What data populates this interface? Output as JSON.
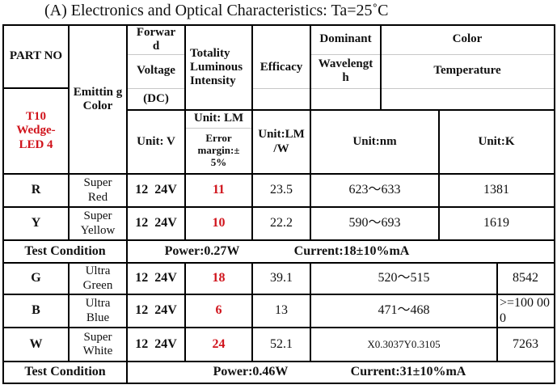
{
  "title": "(A) Electronics and Optical Characteristics: Ta=25˚C",
  "header": {
    "part_no": "PART NO",
    "model": "T10 Wedge-LED 4",
    "emitting_color": "Emittin g Color",
    "forward_1": "Forwar d",
    "forward_2": "Voltage",
    "forward_3": "(DC)",
    "luminous": "Totality Luminous Intensity",
    "efficacy": "Efficacy",
    "dominant_1": "Dominant",
    "dominant_2": "Wavelengt h",
    "color_1": "Color",
    "color_2": "Temperature",
    "unit_v": "Unit: V",
    "unit_lm": "Unit: LM",
    "error_margin": "Error margin:± 5%",
    "unit_lmw": "Unit:LM /W",
    "unit_nm": "Unit:nm",
    "unit_k": "Unit:K"
  },
  "rows": [
    {
      "code": "R",
      "color": "Super Red",
      "voltage": "12  24V",
      "lumens": "11",
      "efficacy": "23.5",
      "wavelength": "623～633",
      "temperature": "1381"
    },
    {
      "code": "Y",
      "color": "Super Yellow",
      "voltage": "12  24V",
      "lumens": "10",
      "efficacy": "22.2",
      "wavelength": "590～693",
      "temperature": "1619"
    },
    {
      "code": "G",
      "color": "Ultra Green",
      "voltage": "12  24V",
      "lumens": "18",
      "efficacy": "39.1",
      "wavelength": "520～515",
      "temperature": "8542"
    },
    {
      "code": "B",
      "color": "Ultra Blue",
      "voltage": "12  24V",
      "lumens": "6",
      "efficacy": "13",
      "wavelength": "471～468",
      "temperature": ">=100 000"
    },
    {
      "code": "W",
      "color": "Super White",
      "voltage": "12  24V",
      "lumens": "24",
      "efficacy": "52.1",
      "wavelength": "X0.3037Y0.3105",
      "temperature": "7263"
    }
  ],
  "test_conditions": [
    {
      "label": "Test Condition",
      "power": "Power:0.27W",
      "current": "Current:18±10%mA"
    },
    {
      "label": "Test Condition",
      "power": "Power:0.46W",
      "current": "Current:31±10%mA"
    }
  ],
  "colors": {
    "highlight": "#d0141c"
  }
}
